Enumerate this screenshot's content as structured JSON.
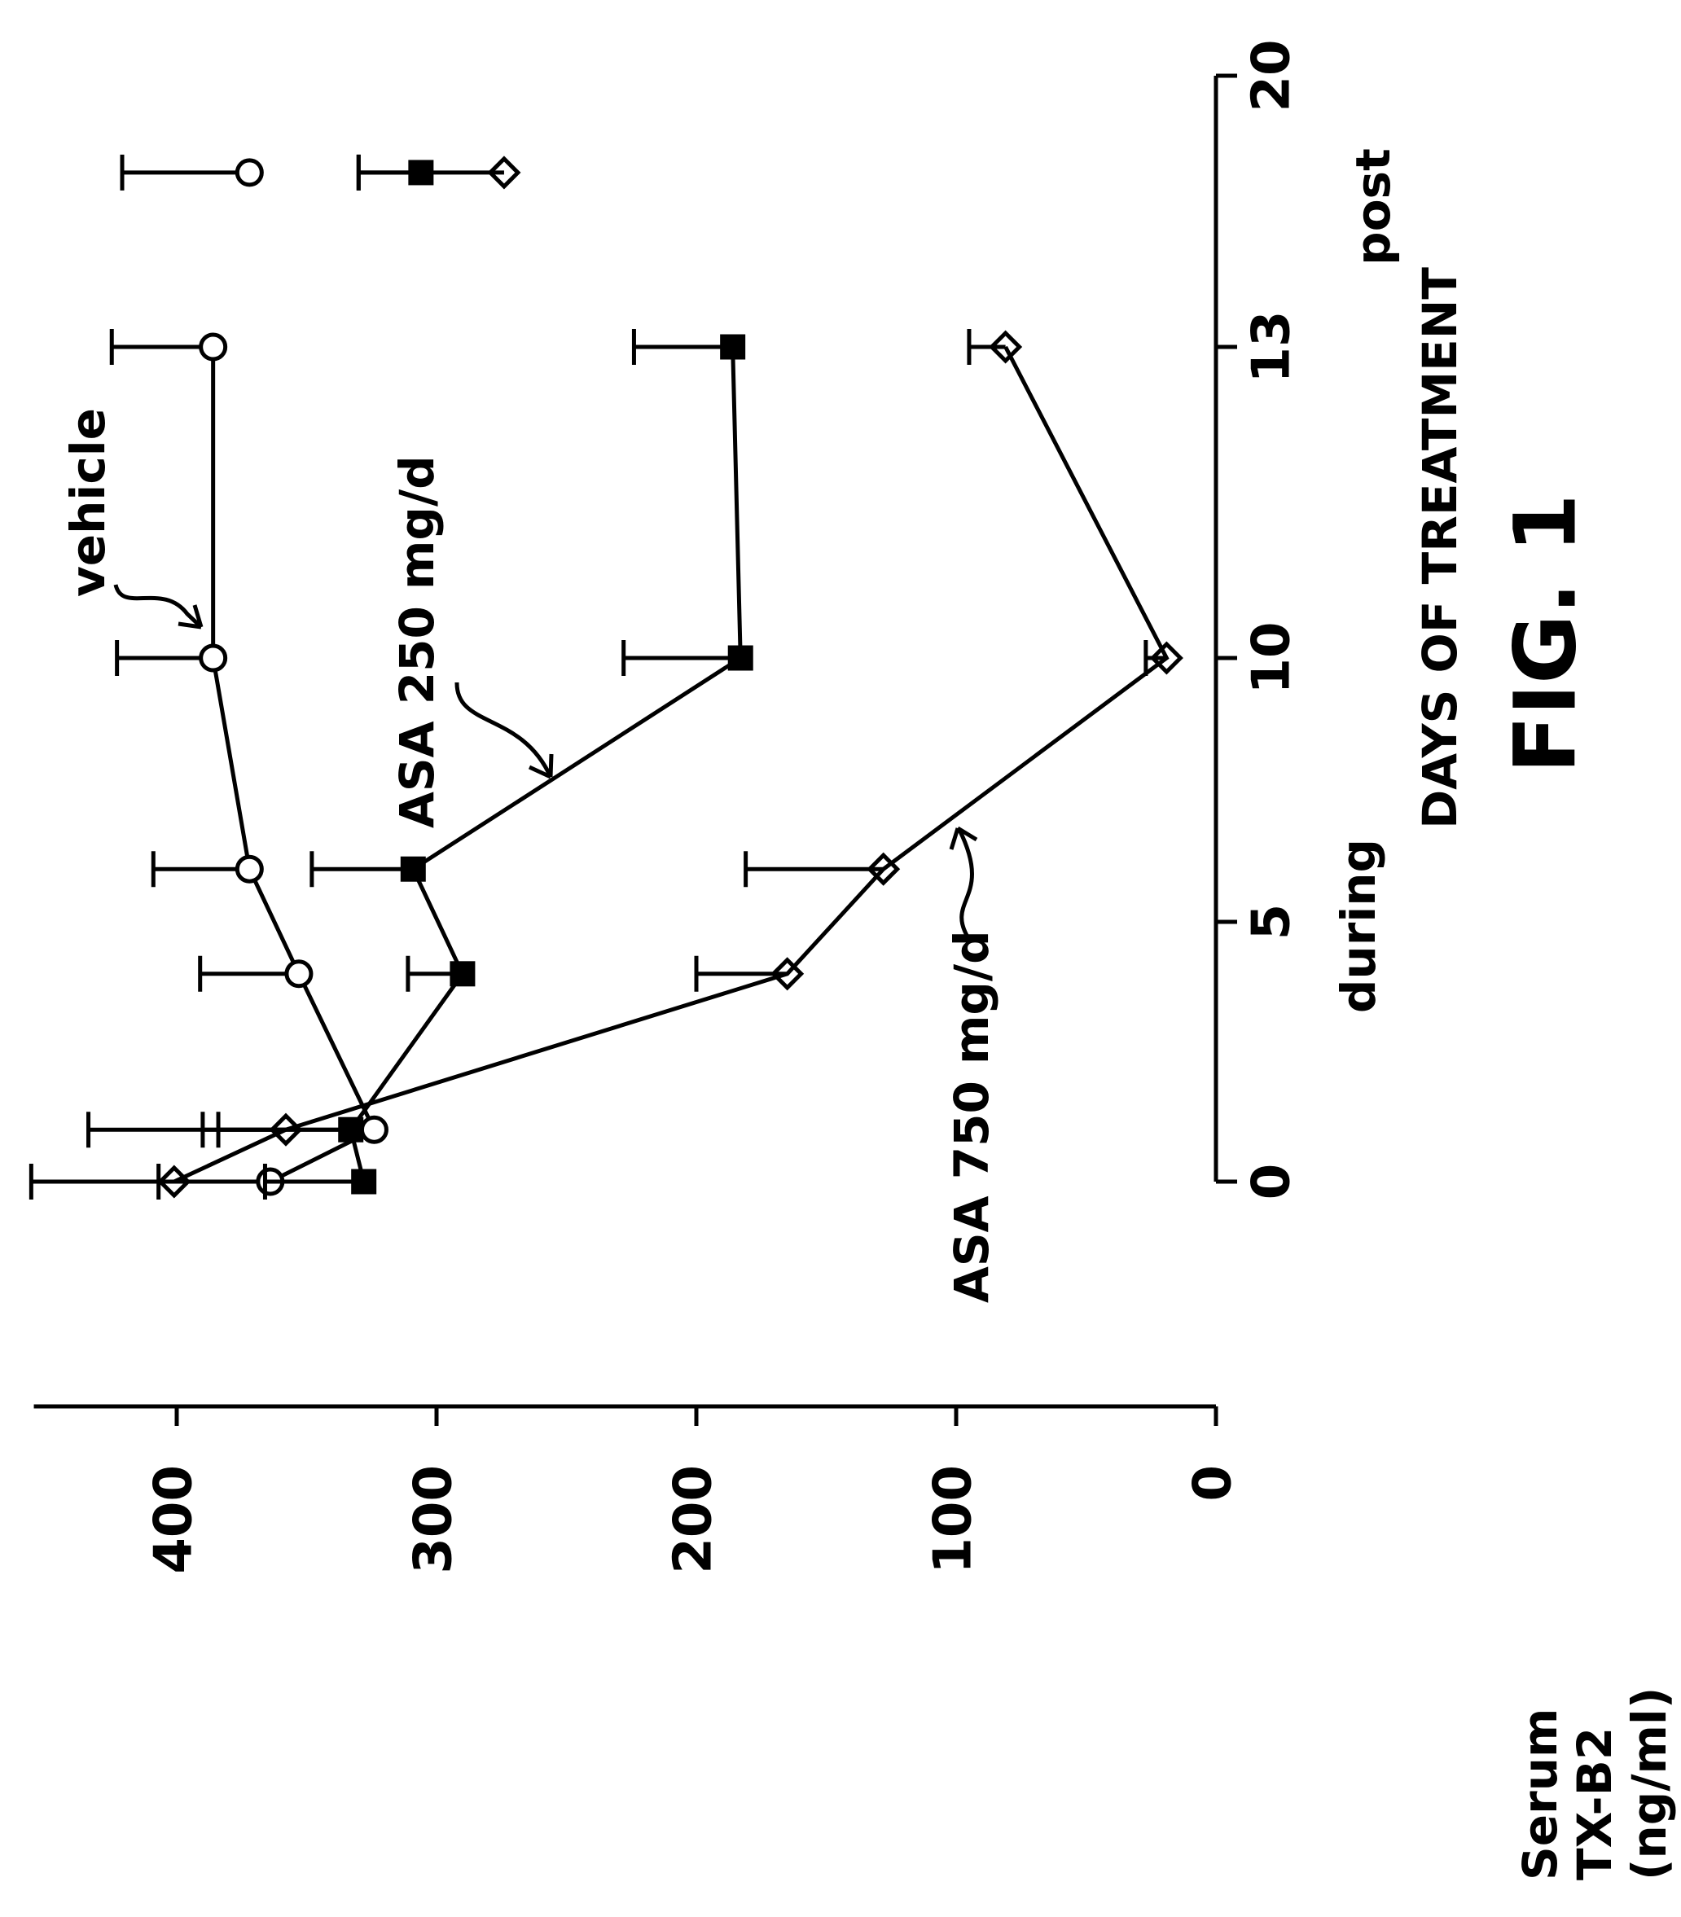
{
  "chart_data": {
    "type": "line",
    "title": "FIG. 1",
    "x_label": "DAYS OF TREATMENT",
    "x_phase_labels": [
      "during",
      "post"
    ],
    "y_label": [
      "Serum",
      "TX-B2",
      "(ng/ml)"
    ],
    "annotations": [
      "vehicle",
      "ASA 250 mg/d",
      "ASA 750 mg/d"
    ],
    "x": [
      0,
      1,
      4,
      6,
      10,
      13,
      17.5
    ],
    "xlim": [
      0,
      20
    ],
    "xticks": [
      0,
      5,
      10,
      13,
      20
    ],
    "ylim": [
      0,
      455
    ],
    "yticks": [
      0,
      100,
      200,
      300,
      400
    ],
    "series": [
      {
        "name": "vehicle",
        "marker": "open-circle",
        "color": "#000000",
        "values": [
          364,
          324,
          353,
          372,
          386,
          386,
          372
        ],
        "errors": [
          43,
          60,
          38,
          37,
          37,
          39,
          49
        ]
      },
      {
        "name": "ASA 250 mg/d",
        "marker": "square",
        "color": "#000000",
        "values": [
          328,
          333,
          290,
          309,
          183,
          186,
          306
        ],
        "errors": [
          38,
          57,
          21,
          39,
          45,
          38,
          24
        ]
      },
      {
        "name": "ASA 750 mg/d",
        "marker": "diamond",
        "color": "#000000",
        "values": [
          401,
          358,
          165,
          128,
          19,
          81,
          274
        ],
        "errors": [
          55,
          76,
          35,
          53,
          8,
          14,
          56
        ]
      }
    ]
  }
}
